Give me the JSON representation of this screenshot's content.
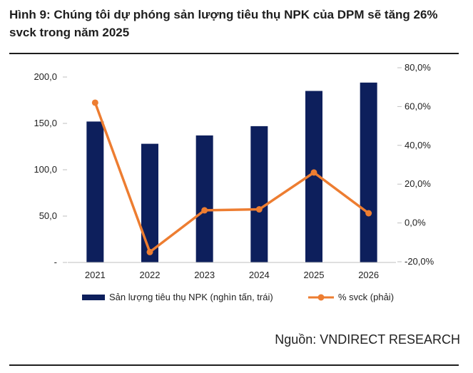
{
  "figure": {
    "title": "Hình 9: Chúng tôi dự phóng sản lượng tiêu thụ NPK của DPM sẽ tăng 26% svck trong năm 2025",
    "source": "Nguồn: VNDIRECT RESEARCH"
  },
  "chart_data": {
    "type": "bar",
    "categories": [
      "2021",
      "2022",
      "2023",
      "2024",
      "2025",
      "2026"
    ],
    "series": [
      {
        "name": "Sản lượng tiêu thụ NPK (nghìn tấn, trái)",
        "type": "bar",
        "axis": "left",
        "color": "#0d1f5c",
        "values": [
          152,
          128,
          137,
          147,
          185,
          194
        ]
      },
      {
        "name": "% svck (phải)",
        "type": "line",
        "axis": "right",
        "color": "#ed7d31",
        "values": [
          62,
          -15,
          6.5,
          7,
          26,
          5
        ]
      }
    ],
    "left_axis": {
      "range": [
        0,
        200
      ],
      "ticks": [
        0,
        50,
        100,
        150,
        200
      ],
      "tick_labels": [
        "-",
        "50,0",
        "100,0",
        "150,0",
        "200,0"
      ]
    },
    "right_axis": {
      "range": [
        -20,
        80
      ],
      "ticks": [
        -20,
        0,
        20,
        40,
        60,
        80
      ],
      "tick_labels": [
        "-20,0%",
        "0,0%",
        "20,0%",
        "40,0%",
        "60,0%",
        "80,0%"
      ]
    },
    "grid": false,
    "legend_position": "bottom"
  }
}
